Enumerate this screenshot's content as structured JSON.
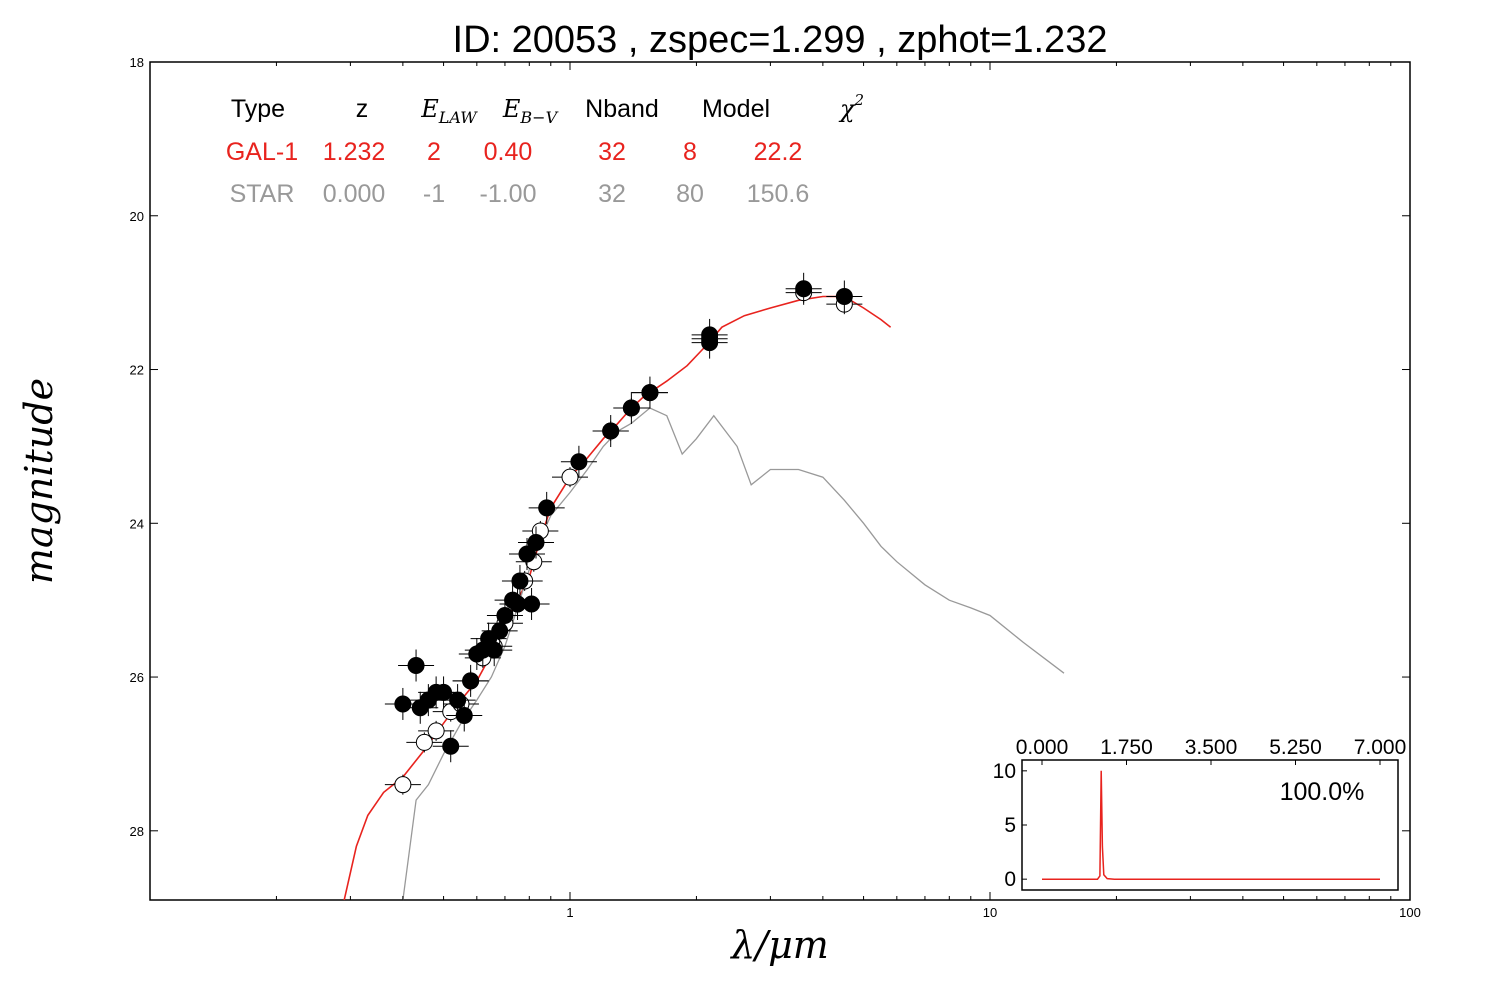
{
  "colors": {
    "galaxy": "#e8231e",
    "star": "#999999",
    "axes": "#000000"
  },
  "chart_data": {
    "type": "scatter",
    "title": "ID:  20053 , zspec=1.299 , zphot=1.232",
    "xlabel": "λ/μm",
    "ylabel": "magnitude",
    "xscale": "log",
    "xlim": [
      0.1,
      100
    ],
    "ylim": [
      28.9,
      18
    ],
    "x_ticks": [
      "1",
      "10",
      "100"
    ],
    "y_ticks": [
      "18",
      "20",
      "22",
      "24",
      "26",
      "28"
    ],
    "grid": false,
    "table": {
      "headers": [
        "Type",
        "z",
        "E_LAW",
        "E_B-V",
        "Nband",
        "Model",
        "χ2"
      ],
      "rows": [
        {
          "name": "GAL-1",
          "color": "#e8231e",
          "values": [
            "GAL-1",
            "1.232",
            "2",
            "0.40",
            "32",
            "8",
            "22.2"
          ]
        },
        {
          "name": "STAR",
          "color": "#999999",
          "values": [
            "STAR",
            "0.000",
            "-1",
            "-1.00",
            "32",
            "80",
            "150.6"
          ]
        }
      ]
    },
    "series": [
      {
        "name": "GAL-1",
        "kind": "line",
        "points": [
          [
            0.29,
            28.9
          ],
          [
            0.31,
            28.2
          ],
          [
            0.33,
            27.8
          ],
          [
            0.36,
            27.5
          ],
          [
            0.4,
            27.3
          ],
          [
            0.45,
            26.95
          ],
          [
            0.5,
            26.6
          ],
          [
            0.55,
            26.3
          ],
          [
            0.6,
            26.05
          ],
          [
            0.65,
            25.7
          ],
          [
            0.7,
            25.3
          ],
          [
            0.75,
            25.0
          ],
          [
            0.8,
            24.7
          ],
          [
            0.85,
            24.2
          ],
          [
            0.9,
            23.8
          ],
          [
            1.0,
            23.4
          ],
          [
            1.1,
            23.15
          ],
          [
            1.2,
            22.9
          ],
          [
            1.3,
            22.7
          ],
          [
            1.4,
            22.5
          ],
          [
            1.5,
            22.35
          ],
          [
            1.7,
            22.15
          ],
          [
            1.9,
            21.95
          ],
          [
            2.1,
            21.7
          ],
          [
            2.3,
            21.45
          ],
          [
            2.6,
            21.3
          ],
          [
            3.0,
            21.2
          ],
          [
            3.5,
            21.1
          ],
          [
            4.0,
            21.05
          ],
          [
            4.5,
            21.05
          ],
          [
            5.0,
            21.2
          ],
          [
            5.5,
            21.35
          ],
          [
            5.8,
            21.45
          ]
        ]
      },
      {
        "name": "STAR",
        "kind": "line",
        "points": [
          [
            0.4,
            28.9
          ],
          [
            0.43,
            27.6
          ],
          [
            0.46,
            27.4
          ],
          [
            0.5,
            27.0
          ],
          [
            0.55,
            26.6
          ],
          [
            0.6,
            26.3
          ],
          [
            0.65,
            26.0
          ],
          [
            0.7,
            25.6
          ],
          [
            0.75,
            25.1
          ],
          [
            0.8,
            24.6
          ],
          [
            0.85,
            24.2
          ],
          [
            0.9,
            23.9
          ],
          [
            1.0,
            23.6
          ],
          [
            1.1,
            23.3
          ],
          [
            1.2,
            23.0
          ],
          [
            1.3,
            22.8
          ],
          [
            1.4,
            22.7
          ],
          [
            1.55,
            22.5
          ],
          [
            1.7,
            22.6
          ],
          [
            1.85,
            23.1
          ],
          [
            2.0,
            22.9
          ],
          [
            2.2,
            22.6
          ],
          [
            2.5,
            23.0
          ],
          [
            2.7,
            23.5
          ],
          [
            3.0,
            23.3
          ],
          [
            3.5,
            23.3
          ],
          [
            4.0,
            23.4
          ],
          [
            4.5,
            23.7
          ],
          [
            5.0,
            24.0
          ],
          [
            5.5,
            24.3
          ],
          [
            6.0,
            24.5
          ],
          [
            7.0,
            24.8
          ],
          [
            8.0,
            25.0
          ],
          [
            9.0,
            25.1
          ],
          [
            10.0,
            25.2
          ],
          [
            12.0,
            25.55
          ],
          [
            15.0,
            25.95
          ]
        ]
      },
      {
        "name": "model magnitudes",
        "kind": "open",
        "points": [
          [
            0.4,
            27.4
          ],
          [
            0.45,
            26.85
          ],
          [
            0.48,
            26.7
          ],
          [
            0.52,
            26.45
          ],
          [
            0.55,
            26.35
          ],
          [
            0.58,
            26.05
          ],
          [
            0.62,
            25.75
          ],
          [
            0.66,
            25.6
          ],
          [
            0.7,
            25.3
          ],
          [
            0.75,
            25.05
          ],
          [
            0.78,
            24.75
          ],
          [
            0.82,
            24.5
          ],
          [
            0.85,
            24.1
          ],
          [
            1.0,
            23.4
          ],
          [
            1.25,
            22.8
          ],
          [
            1.4,
            22.5
          ],
          [
            1.55,
            22.3
          ],
          [
            2.15,
            21.6
          ],
          [
            3.6,
            21.0
          ],
          [
            4.5,
            21.15
          ]
        ]
      },
      {
        "name": "observed magnitudes",
        "kind": "filled",
        "points": [
          [
            0.4,
            26.35
          ],
          [
            0.43,
            25.85
          ],
          [
            0.44,
            26.4
          ],
          [
            0.46,
            26.3
          ],
          [
            0.48,
            26.2
          ],
          [
            0.5,
            26.2
          ],
          [
            0.52,
            26.9
          ],
          [
            0.54,
            26.3
          ],
          [
            0.56,
            26.5
          ],
          [
            0.58,
            26.05
          ],
          [
            0.6,
            25.7
          ],
          [
            0.62,
            25.65
          ],
          [
            0.64,
            25.5
          ],
          [
            0.66,
            25.65
          ],
          [
            0.68,
            25.4
          ],
          [
            0.7,
            25.2
          ],
          [
            0.73,
            25.0
          ],
          [
            0.75,
            25.05
          ],
          [
            0.76,
            24.75
          ],
          [
            0.79,
            24.4
          ],
          [
            0.81,
            25.05
          ],
          [
            0.83,
            24.25
          ],
          [
            0.88,
            23.8
          ],
          [
            1.05,
            23.2
          ],
          [
            1.25,
            22.8
          ],
          [
            1.4,
            22.5
          ],
          [
            1.55,
            22.3
          ],
          [
            2.15,
            21.55
          ],
          [
            2.15,
            21.65
          ],
          [
            3.6,
            20.95
          ],
          [
            4.5,
            21.05
          ]
        ]
      }
    ],
    "inset": {
      "type": "line",
      "x_ticks": [
        "0.000",
        "1.750",
        "3.500",
        "5.250",
        "7.000"
      ],
      "y_ticks": [
        "10",
        "5",
        "0"
      ],
      "xlim": [
        0,
        7
      ],
      "ylim": [
        -1,
        11
      ],
      "label": "100.0%",
      "points": [
        [
          0.0,
          0.0
        ],
        [
          1.15,
          0.0
        ],
        [
          1.2,
          0.3
        ],
        [
          1.225,
          10.0
        ],
        [
          1.25,
          3.0
        ],
        [
          1.28,
          0.4
        ],
        [
          1.35,
          0.05
        ],
        [
          1.5,
          0.0
        ],
        [
          7.0,
          0.0
        ]
      ]
    }
  }
}
